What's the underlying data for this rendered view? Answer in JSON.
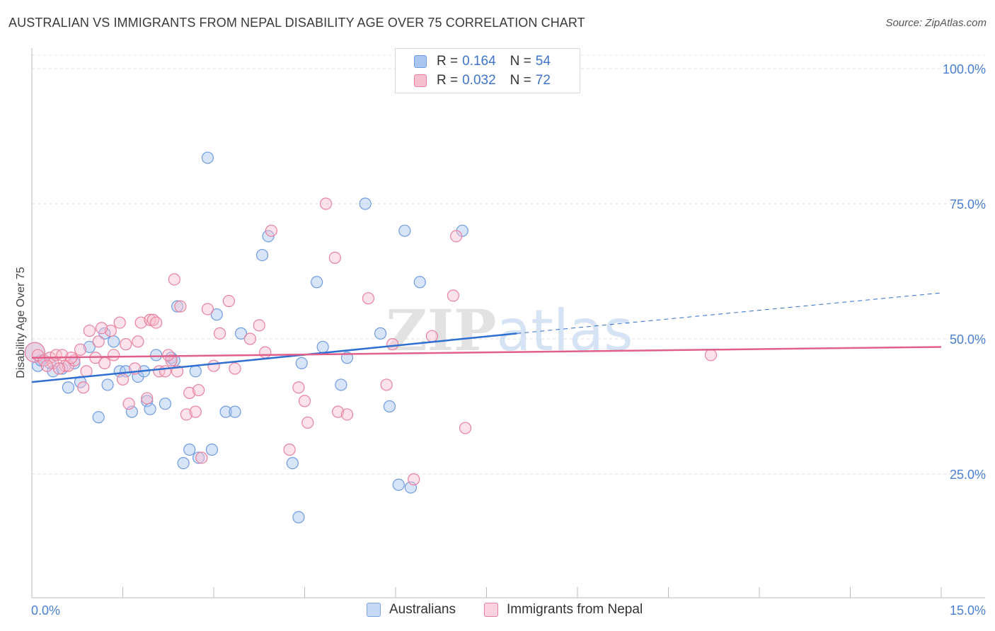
{
  "title": "AUSTRALIAN VS IMMIGRANTS FROM NEPAL DISABILITY AGE OVER 75 CORRELATION CHART",
  "source": "Source: ZipAtlas.com",
  "watermark": "ZIPatlas",
  "legend_top": [
    {
      "r_label": "R =",
      "r_value": "0.164",
      "n_label": "N =",
      "n_value": "54",
      "color": "#a8c6ef",
      "border": "#6f9be0"
    },
    {
      "r_label": "R =",
      "r_value": "0.032",
      "n_label": "N =",
      "n_value": "72",
      "color": "#f8bfd1",
      "border": "#e8819e"
    }
  ],
  "legend_bottom": [
    {
      "label": "Australians",
      "color": "#c5d9f5",
      "border": "#7aa3e0"
    },
    {
      "label": "Immigrants from Nepal",
      "color": "#fbd3e0",
      "border": "#e8819e"
    }
  ],
  "chart_data": {
    "type": "scatter",
    "ylabel": "Disability Age Over 75",
    "xlim": [
      0,
      15
    ],
    "ylim": [
      0,
      105
    ],
    "x_tick_labels": [
      "0.0%",
      "15.0%"
    ],
    "y_ticks": [
      25,
      50,
      75,
      100
    ],
    "y_tick_labels": [
      "25.0%",
      "50.0%",
      "75.0%",
      "100.0%"
    ],
    "grid": "horizontal dashed",
    "series": [
      {
        "name": "Australians",
        "color": "#6f9be0",
        "fill": "#a8c6ef",
        "trend": {
          "x0": 0,
          "y0": 42.0,
          "x1": 8.0,
          "y1": 51.0,
          "dash_to": 15.0,
          "dash_y": 58.5,
          "color": "#2f6fd0"
        },
        "points": [
          [
            0.05,
            47.5
          ],
          [
            0.1,
            45
          ],
          [
            0.2,
            46
          ],
          [
            0.3,
            45.5
          ],
          [
            0.35,
            44
          ],
          [
            0.5,
            44.5
          ],
          [
            0.6,
            41
          ],
          [
            0.7,
            45.5
          ],
          [
            0.8,
            42
          ],
          [
            0.95,
            48.5
          ],
          [
            1.1,
            35.5
          ],
          [
            1.2,
            51
          ],
          [
            1.25,
            41.5
          ],
          [
            1.35,
            49.5
          ],
          [
            1.45,
            44
          ],
          [
            1.55,
            44
          ],
          [
            1.65,
            36.5
          ],
          [
            1.75,
            43
          ],
          [
            1.85,
            44
          ],
          [
            1.9,
            38.5
          ],
          [
            1.95,
            37
          ],
          [
            2.05,
            47
          ],
          [
            2.2,
            38
          ],
          [
            2.3,
            46.5
          ],
          [
            2.35,
            46
          ],
          [
            2.4,
            56
          ],
          [
            2.5,
            27
          ],
          [
            2.6,
            29.5
          ],
          [
            2.7,
            44
          ],
          [
            2.75,
            28
          ],
          [
            2.9,
            83.5
          ],
          [
            2.97,
            29.5
          ],
          [
            3.05,
            54.5
          ],
          [
            3.2,
            36.5
          ],
          [
            3.35,
            36.5
          ],
          [
            3.45,
            51
          ],
          [
            3.8,
            65.5
          ],
          [
            3.9,
            69
          ],
          [
            4.3,
            27
          ],
          [
            4.4,
            17
          ],
          [
            4.45,
            45.5
          ],
          [
            4.7,
            60.5
          ],
          [
            4.8,
            48.5
          ],
          [
            5.1,
            41.5
          ],
          [
            5.2,
            46.5
          ],
          [
            5.5,
            75
          ],
          [
            5.75,
            51
          ],
          [
            5.9,
            37.5
          ],
          [
            6.05,
            23
          ],
          [
            6.15,
            70
          ],
          [
            6.25,
            22.5
          ],
          [
            6.4,
            60.5
          ],
          [
            7.1,
            70
          ],
          [
            0.15,
            46
          ]
        ]
      },
      {
        "name": "Immigrants from Nepal",
        "color": "#e8819e",
        "fill": "#f8bfd1",
        "trend": {
          "x0": 0,
          "y0": 46.5,
          "x1": 15.0,
          "y1": 48.5,
          "color": "#e0608a"
        },
        "points": [
          [
            0.05,
            47.5
          ],
          [
            0.1,
            47
          ],
          [
            0.2,
            46
          ],
          [
            0.3,
            46.5
          ],
          [
            0.35,
            45.5
          ],
          [
            0.4,
            47
          ],
          [
            0.5,
            47
          ],
          [
            0.55,
            45
          ],
          [
            0.6,
            45
          ],
          [
            0.7,
            46
          ],
          [
            0.8,
            48
          ],
          [
            0.85,
            41
          ],
          [
            0.9,
            44
          ],
          [
            0.95,
            51.5
          ],
          [
            1.05,
            46.5
          ],
          [
            1.1,
            49.5
          ],
          [
            1.2,
            45.5
          ],
          [
            1.3,
            51.5
          ],
          [
            1.35,
            47
          ],
          [
            1.45,
            53
          ],
          [
            1.5,
            42.5
          ],
          [
            1.55,
            49
          ],
          [
            1.6,
            38
          ],
          [
            1.7,
            44.5
          ],
          [
            1.75,
            49.5
          ],
          [
            1.8,
            53
          ],
          [
            1.9,
            39
          ],
          [
            1.95,
            53.5
          ],
          [
            2.0,
            53.5
          ],
          [
            2.05,
            53
          ],
          [
            2.1,
            44
          ],
          [
            2.2,
            44
          ],
          [
            2.3,
            46
          ],
          [
            2.35,
            61
          ],
          [
            2.4,
            44
          ],
          [
            2.45,
            56
          ],
          [
            2.55,
            36
          ],
          [
            2.6,
            40
          ],
          [
            2.7,
            36.5
          ],
          [
            2.75,
            40.5
          ],
          [
            2.8,
            28
          ],
          [
            2.9,
            55.5
          ],
          [
            3.0,
            45
          ],
          [
            3.1,
            51
          ],
          [
            3.25,
            57
          ],
          [
            3.35,
            44.5
          ],
          [
            3.75,
            52.5
          ],
          [
            3.85,
            47.5
          ],
          [
            3.95,
            70
          ],
          [
            4.25,
            29.5
          ],
          [
            4.4,
            41
          ],
          [
            4.5,
            38.5
          ],
          [
            4.55,
            34.5
          ],
          [
            4.85,
            75
          ],
          [
            5.0,
            65
          ],
          [
            5.05,
            36.5
          ],
          [
            5.2,
            36
          ],
          [
            5.55,
            57.5
          ],
          [
            5.85,
            41.5
          ],
          [
            5.95,
            49
          ],
          [
            6.3,
            24
          ],
          [
            6.6,
            50.5
          ],
          [
            6.95,
            58
          ],
          [
            7.0,
            69
          ],
          [
            7.15,
            33.5
          ],
          [
            11.2,
            47
          ],
          [
            0.25,
            45
          ],
          [
            0.45,
            44.5
          ],
          [
            0.65,
            46.5
          ],
          [
            1.15,
            52
          ],
          [
            2.25,
            47
          ],
          [
            3.6,
            50
          ]
        ]
      }
    ]
  }
}
